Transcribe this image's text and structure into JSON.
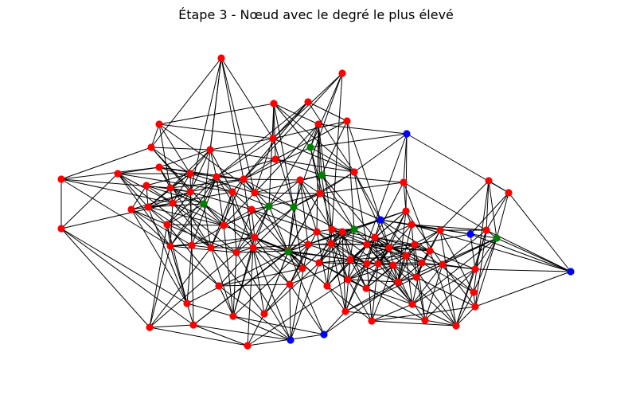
{
  "title": "Étape 3 - Nœud avec le degré le plus élevé",
  "colors": {
    "red": "#ff0000",
    "green": "#008000",
    "blue": "#0000ff",
    "edge": "#000000"
  },
  "nodes": [
    {
      "id": 0,
      "color": "red"
    },
    {
      "id": 1,
      "color": "red"
    },
    {
      "id": 2,
      "color": "red"
    },
    {
      "id": 3,
      "color": "red"
    },
    {
      "id": 4,
      "color": "red"
    },
    {
      "id": 5,
      "color": "red"
    },
    {
      "id": 6,
      "color": "red"
    },
    {
      "id": 7,
      "color": "blue"
    },
    {
      "id": 8,
      "color": "red"
    },
    {
      "id": 9,
      "color": "red"
    },
    {
      "id": 10,
      "color": "red"
    },
    {
      "id": 11,
      "color": "green"
    },
    {
      "id": 12,
      "color": "red"
    },
    {
      "id": 13,
      "color": "red"
    },
    {
      "id": 14,
      "color": "red"
    },
    {
      "id": 15,
      "color": "red"
    },
    {
      "id": 16,
      "color": "red"
    },
    {
      "id": 17,
      "color": "red"
    },
    {
      "id": 18,
      "color": "red"
    },
    {
      "id": 19,
      "color": "green"
    },
    {
      "id": 20,
      "color": "red"
    },
    {
      "id": 21,
      "color": "red"
    },
    {
      "id": 22,
      "color": "red"
    },
    {
      "id": 23,
      "color": "red"
    },
    {
      "id": 24,
      "color": "red"
    },
    {
      "id": 25,
      "color": "red"
    },
    {
      "id": 26,
      "color": "red"
    },
    {
      "id": 27,
      "color": "red"
    },
    {
      "id": 28,
      "color": "red"
    },
    {
      "id": 29,
      "color": "red"
    },
    {
      "id": 30,
      "color": "red"
    },
    {
      "id": 31,
      "color": "red"
    },
    {
      "id": 32,
      "color": "red"
    },
    {
      "id": 33,
      "color": "green"
    },
    {
      "id": 34,
      "color": "red"
    },
    {
      "id": 35,
      "color": "green"
    },
    {
      "id": 36,
      "color": "green"
    },
    {
      "id": 37,
      "color": "red"
    },
    {
      "id": 38,
      "color": "red"
    },
    {
      "id": 39,
      "color": "red"
    },
    {
      "id": 40,
      "color": "red"
    },
    {
      "id": 41,
      "color": "green"
    },
    {
      "id": 42,
      "color": "red"
    },
    {
      "id": 43,
      "color": "red"
    },
    {
      "id": 44,
      "color": "red"
    },
    {
      "id": 45,
      "color": "blue"
    },
    {
      "id": 46,
      "color": "red"
    },
    {
      "id": 47,
      "color": "red"
    },
    {
      "id": 48,
      "color": "green"
    },
    {
      "id": 49,
      "color": "red"
    },
    {
      "id": 50,
      "color": "red"
    },
    {
      "id": 51,
      "color": "red"
    },
    {
      "id": 52,
      "color": "red"
    },
    {
      "id": 53,
      "color": "red"
    },
    {
      "id": 54,
      "color": "red"
    },
    {
      "id": 55,
      "color": "red"
    },
    {
      "id": 56,
      "color": "red"
    },
    {
      "id": 57,
      "color": "red"
    },
    {
      "id": 58,
      "color": "red"
    },
    {
      "id": 59,
      "color": "blue"
    },
    {
      "id": 60,
      "color": "green"
    },
    {
      "id": 61,
      "color": "red"
    },
    {
      "id": 62,
      "color": "blue"
    },
    {
      "id": 63,
      "color": "red"
    },
    {
      "id": 64,
      "color": "red"
    },
    {
      "id": 65,
      "color": "red"
    },
    {
      "id": 66,
      "color": "red"
    },
    {
      "id": 67,
      "color": "red"
    },
    {
      "id": 68,
      "color": "red"
    },
    {
      "id": 69,
      "color": "red"
    },
    {
      "id": 70,
      "color": "red"
    },
    {
      "id": 71,
      "color": "red"
    },
    {
      "id": 72,
      "color": "red"
    },
    {
      "id": 73,
      "color": "red"
    },
    {
      "id": 74,
      "color": "red"
    },
    {
      "id": 75,
      "color": "red"
    },
    {
      "id": 76,
      "color": "red"
    },
    {
      "id": 77,
      "color": "red"
    },
    {
      "id": 78,
      "color": "red"
    },
    {
      "id": 79,
      "color": "red"
    },
    {
      "id": 80,
      "color": "red"
    },
    {
      "id": 81,
      "color": "red"
    },
    {
      "id": 82,
      "color": "red"
    },
    {
      "id": 83,
      "color": "red"
    },
    {
      "id": 84,
      "color": "red"
    },
    {
      "id": 85,
      "color": "red"
    },
    {
      "id": 86,
      "color": "red"
    },
    {
      "id": 87,
      "color": "red"
    },
    {
      "id": 88,
      "color": "red"
    },
    {
      "id": 89,
      "color": "red"
    },
    {
      "id": 90,
      "color": "blue"
    },
    {
      "id": 91,
      "color": "red"
    },
    {
      "id": 92,
      "color": "red"
    },
    {
      "id": 93,
      "color": "red"
    },
    {
      "id": 94,
      "color": "red"
    },
    {
      "id": 95,
      "color": "red"
    },
    {
      "id": 96,
      "color": "red"
    },
    {
      "id": 97,
      "color": "red"
    },
    {
      "id": 98,
      "color": "red"
    },
    {
      "id": 99,
      "color": "blue"
    }
  ]
}
